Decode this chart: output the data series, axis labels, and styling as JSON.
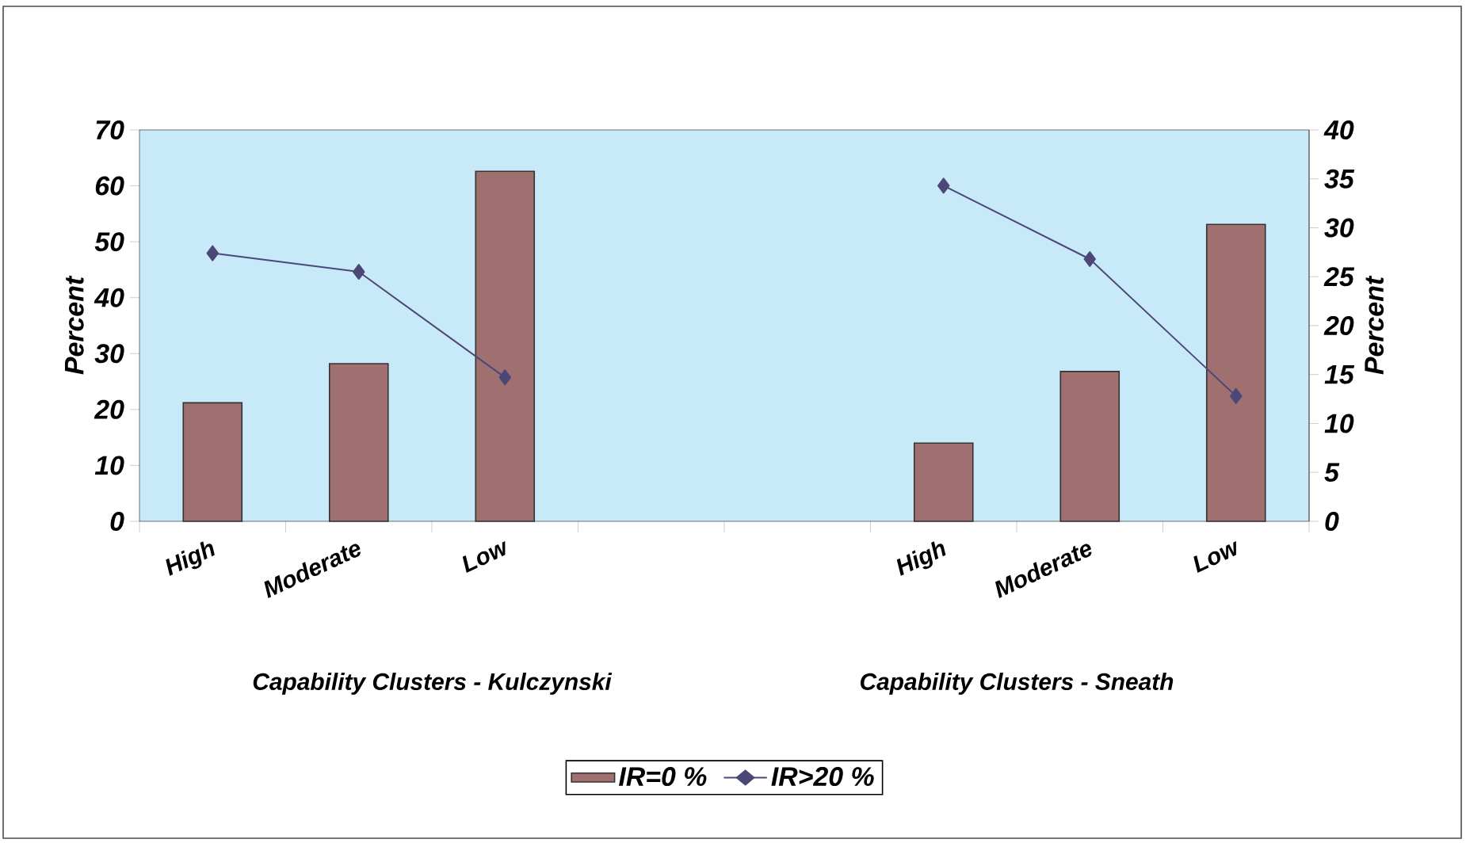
{
  "chart_data": {
    "type": "bar",
    "categories": [
      "High",
      "Moderate",
      "Low",
      null,
      null,
      "High",
      "Moderate",
      "Low"
    ],
    "series": [
      {
        "name": "IR=0 %",
        "color": "#a07070",
        "values": [
          21.2,
          28.2,
          62.6,
          null,
          null,
          14.0,
          26.8,
          53.1
        ]
      },
      {
        "name": "IR>20 %",
        "type": "line",
        "axis": "y2",
        "marker": "diamond",
        "color": "#4b4878",
        "values": [
          27.4,
          25.5,
          14.7,
          null,
          null,
          34.3,
          26.8,
          12.8
        ]
      }
    ],
    "ylabel": "Percent",
    "y2label": "Percent",
    "ylim": [
      0,
      70
    ],
    "yticks": [
      0,
      10,
      20,
      30,
      40,
      50,
      60,
      70
    ],
    "y2lim": [
      0,
      40
    ],
    "y2ticks": [
      0,
      5,
      10,
      15,
      20,
      25,
      30,
      35,
      40
    ],
    "annotations": [
      "Capability Clusters - Kulczynski",
      "Capability Clusters - Sneath"
    ],
    "legend": "bottom"
  }
}
